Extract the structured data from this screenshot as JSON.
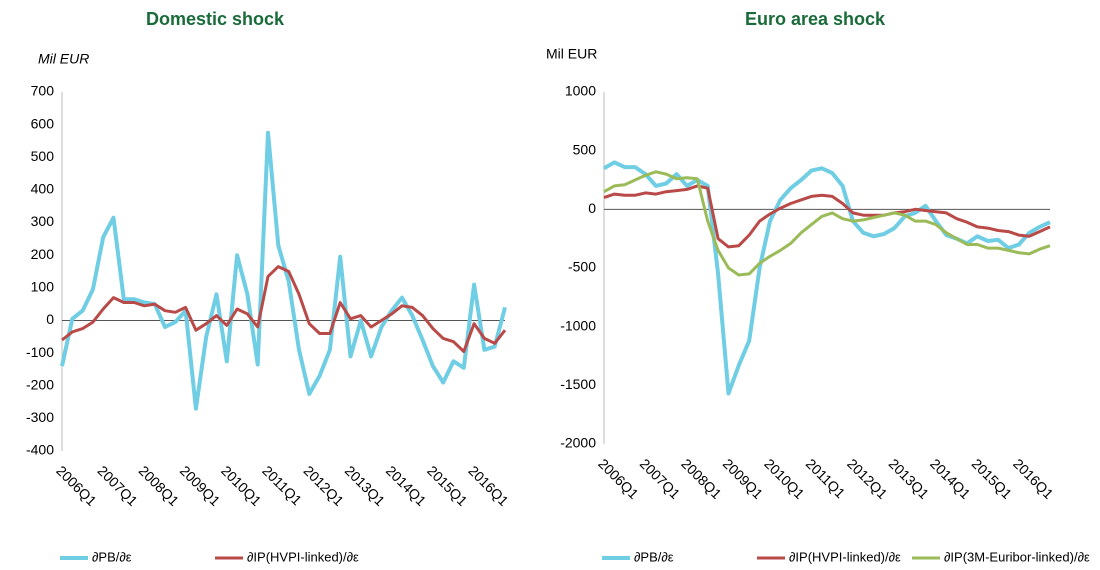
{
  "chart_data": [
    {
      "type": "line",
      "title": "Domestic shock",
      "y_label": "Mil EUR",
      "categories": [
        "2006Q1",
        null,
        null,
        null,
        "2007Q1",
        null,
        null,
        null,
        "2008Q1",
        null,
        null,
        null,
        "2009Q1",
        null,
        null,
        null,
        "2010Q1",
        null,
        null,
        null,
        "2011Q1",
        null,
        null,
        null,
        "2012Q1",
        null,
        null,
        null,
        "2013Q1",
        null,
        null,
        null,
        "2014Q1",
        null,
        null,
        null,
        "2015Q1",
        null,
        null,
        null,
        "2016Q1",
        null,
        null,
        null
      ],
      "ylim": [
        -400,
        700
      ],
      "yticks": [
        -400,
        -300,
        -200,
        -100,
        0,
        100,
        200,
        300,
        400,
        500,
        600,
        700
      ],
      "series": [
        {
          "name": "∂PB/∂ε",
          "color": "#6fcde4",
          "values": [
            -140,
            5,
            30,
            95,
            255,
            315,
            65,
            65,
            55,
            50,
            -20,
            -5,
            30,
            -270,
            -50,
            80,
            -125,
            200,
            80,
            -135,
            575,
            230,
            120,
            -90,
            -225,
            -170,
            -90,
            195,
            -110,
            0,
            -110,
            -20,
            30,
            70,
            15,
            -60,
            -140,
            -190,
            -125,
            -145,
            110,
            -90,
            -80,
            40
          ]
        },
        {
          "name": "∂IP(HVPI-linked)/∂ε",
          "color": "#b94a48",
          "values": [
            -60,
            -35,
            -25,
            -5,
            35,
            70,
            55,
            55,
            45,
            50,
            30,
            25,
            40,
            -30,
            -10,
            15,
            -15,
            35,
            20,
            -20,
            135,
            165,
            150,
            80,
            -10,
            -40,
            -40,
            55,
            5,
            15,
            -20,
            0,
            20,
            45,
            40,
            15,
            -25,
            -55,
            -65,
            -95,
            -10,
            -55,
            -70,
            -30
          ]
        }
      ]
    },
    {
      "type": "line",
      "title": "Euro area shock",
      "y_label": "Mil EUR",
      "categories": [
        "2006Q1",
        null,
        null,
        null,
        "2007Q1",
        null,
        null,
        null,
        "2008Q1",
        null,
        null,
        null,
        "2009Q1",
        null,
        null,
        null,
        "2010Q1",
        null,
        null,
        null,
        "2011Q1",
        null,
        null,
        null,
        "2012Q1",
        null,
        null,
        null,
        "2013Q1",
        null,
        null,
        null,
        "2014Q1",
        null,
        null,
        null,
        "2015Q1",
        null,
        null,
        null,
        "2016Q1",
        null,
        null,
        null
      ],
      "ylim": [
        -2000,
        1000
      ],
      "yticks": [
        -2000,
        -1500,
        -1000,
        -500,
        0,
        500,
        1000
      ],
      "series": [
        {
          "name": "∂PB/∂ε",
          "color": "#6fcde4",
          "values": [
            350,
            400,
            360,
            360,
            300,
            200,
            220,
            300,
            200,
            250,
            200,
            -550,
            -1570,
            -1330,
            -1120,
            -500,
            -100,
            80,
            180,
            250,
            330,
            350,
            310,
            200,
            -100,
            -200,
            -230,
            -210,
            -160,
            -60,
            -30,
            30,
            -100,
            -220,
            -250,
            -290,
            -230,
            -270,
            -260,
            -330,
            -300,
            -200,
            -150,
            -110
          ]
        },
        {
          "name": "∂IP(HVPI-linked)/∂ε",
          "color": "#b94a48",
          "values": [
            100,
            130,
            120,
            120,
            140,
            130,
            150,
            160,
            170,
            200,
            180,
            -250,
            -320,
            -310,
            -220,
            -100,
            -40,
            10,
            50,
            80,
            110,
            120,
            110,
            50,
            -30,
            -50,
            -50,
            -50,
            -30,
            -20,
            0,
            -10,
            -20,
            -30,
            -80,
            -110,
            -150,
            -160,
            -180,
            -190,
            -220,
            -230,
            -190,
            -150
          ]
        },
        {
          "name": "∂IP(3M-Euribor-linked)/∂ε",
          "color": "#9bbb59",
          "values": [
            150,
            200,
            210,
            250,
            290,
            320,
            300,
            260,
            270,
            260,
            -100,
            -350,
            -500,
            -560,
            -550,
            -460,
            -400,
            -350,
            -290,
            -200,
            -130,
            -60,
            -30,
            -80,
            -100,
            -90,
            -70,
            -50,
            -30,
            -50,
            -100,
            -100,
            -130,
            -200,
            -250,
            -300,
            -300,
            -330,
            -330,
            -350,
            -370,
            -380,
            -340,
            -310
          ]
        }
      ]
    }
  ]
}
